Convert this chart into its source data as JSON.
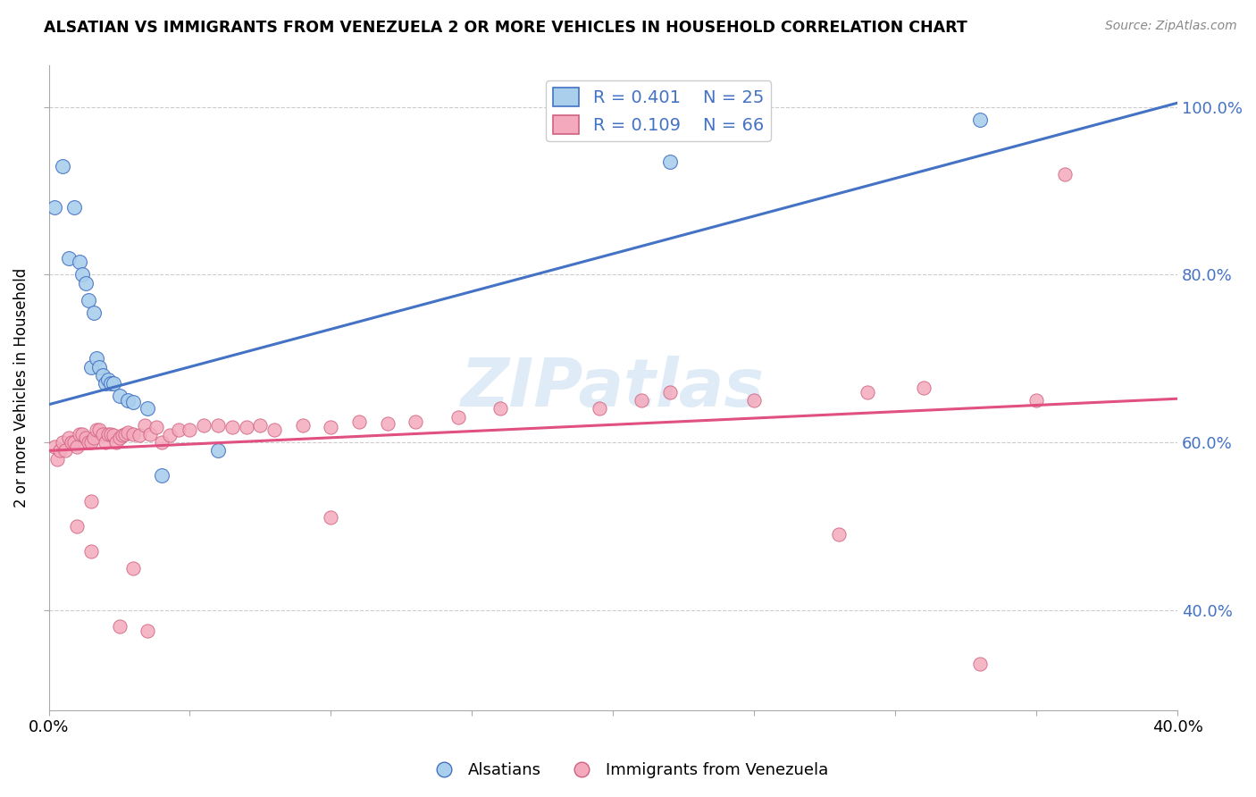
{
  "title": "ALSATIAN VS IMMIGRANTS FROM VENEZUELA 2 OR MORE VEHICLES IN HOUSEHOLD CORRELATION CHART",
  "source": "Source: ZipAtlas.com",
  "ylabel": "2 or more Vehicles in Household",
  "watermark": "ZIPatlas",
  "legend_r1": "R = 0.401",
  "legend_n1": "N = 25",
  "legend_r2": "R = 0.109",
  "legend_n2": "N = 66",
  "blue_color": "#AACFEC",
  "pink_color": "#F4AABC",
  "trend_blue": "#4472C4",
  "trend_pink": "#E05080",
  "legend_text_color": "#4472C4",
  "xmin": 0.0,
  "xmax": 0.4,
  "ymin": 0.28,
  "ymax": 1.05,
  "blue_intercept": 0.645,
  "blue_slope": 0.9,
  "pink_intercept": 0.59,
  "pink_slope": 0.155,
  "blue_x": [
    0.002,
    0.005,
    0.007,
    0.009,
    0.011,
    0.012,
    0.013,
    0.014,
    0.015,
    0.016,
    0.017,
    0.018,
    0.019,
    0.02,
    0.021,
    0.022,
    0.023,
    0.025,
    0.028,
    0.03,
    0.035,
    0.04,
    0.06,
    0.22,
    0.33
  ],
  "blue_y": [
    0.88,
    0.93,
    0.82,
    0.88,
    0.815,
    0.8,
    0.79,
    0.77,
    0.69,
    0.755,
    0.7,
    0.69,
    0.68,
    0.67,
    0.675,
    0.67,
    0.67,
    0.655,
    0.65,
    0.648,
    0.64,
    0.56,
    0.59,
    0.935,
    0.985
  ],
  "pink_x": [
    0.002,
    0.003,
    0.004,
    0.005,
    0.006,
    0.007,
    0.008,
    0.009,
    0.01,
    0.011,
    0.012,
    0.013,
    0.014,
    0.015,
    0.016,
    0.017,
    0.018,
    0.019,
    0.02,
    0.021,
    0.022,
    0.023,
    0.024,
    0.025,
    0.026,
    0.027,
    0.028,
    0.03,
    0.032,
    0.034,
    0.036,
    0.038,
    0.04,
    0.043,
    0.046,
    0.05,
    0.055,
    0.06,
    0.065,
    0.07,
    0.075,
    0.08,
    0.09,
    0.1,
    0.11,
    0.12,
    0.13,
    0.145,
    0.16,
    0.195,
    0.21,
    0.22,
    0.25,
    0.29,
    0.31,
    0.35,
    0.01,
    0.015,
    0.015,
    0.025,
    0.03,
    0.035,
    0.1,
    0.28,
    0.33,
    0.36
  ],
  "pink_y": [
    0.595,
    0.58,
    0.59,
    0.6,
    0.59,
    0.605,
    0.6,
    0.6,
    0.595,
    0.61,
    0.61,
    0.605,
    0.6,
    0.6,
    0.605,
    0.615,
    0.615,
    0.61,
    0.6,
    0.61,
    0.61,
    0.608,
    0.6,
    0.605,
    0.608,
    0.61,
    0.612,
    0.61,
    0.608,
    0.62,
    0.61,
    0.618,
    0.6,
    0.608,
    0.615,
    0.615,
    0.62,
    0.62,
    0.618,
    0.618,
    0.62,
    0.615,
    0.62,
    0.618,
    0.625,
    0.622,
    0.625,
    0.63,
    0.64,
    0.64,
    0.65,
    0.66,
    0.65,
    0.66,
    0.665,
    0.65,
    0.5,
    0.53,
    0.47,
    0.38,
    0.45,
    0.375,
    0.51,
    0.49,
    0.335,
    0.92
  ]
}
